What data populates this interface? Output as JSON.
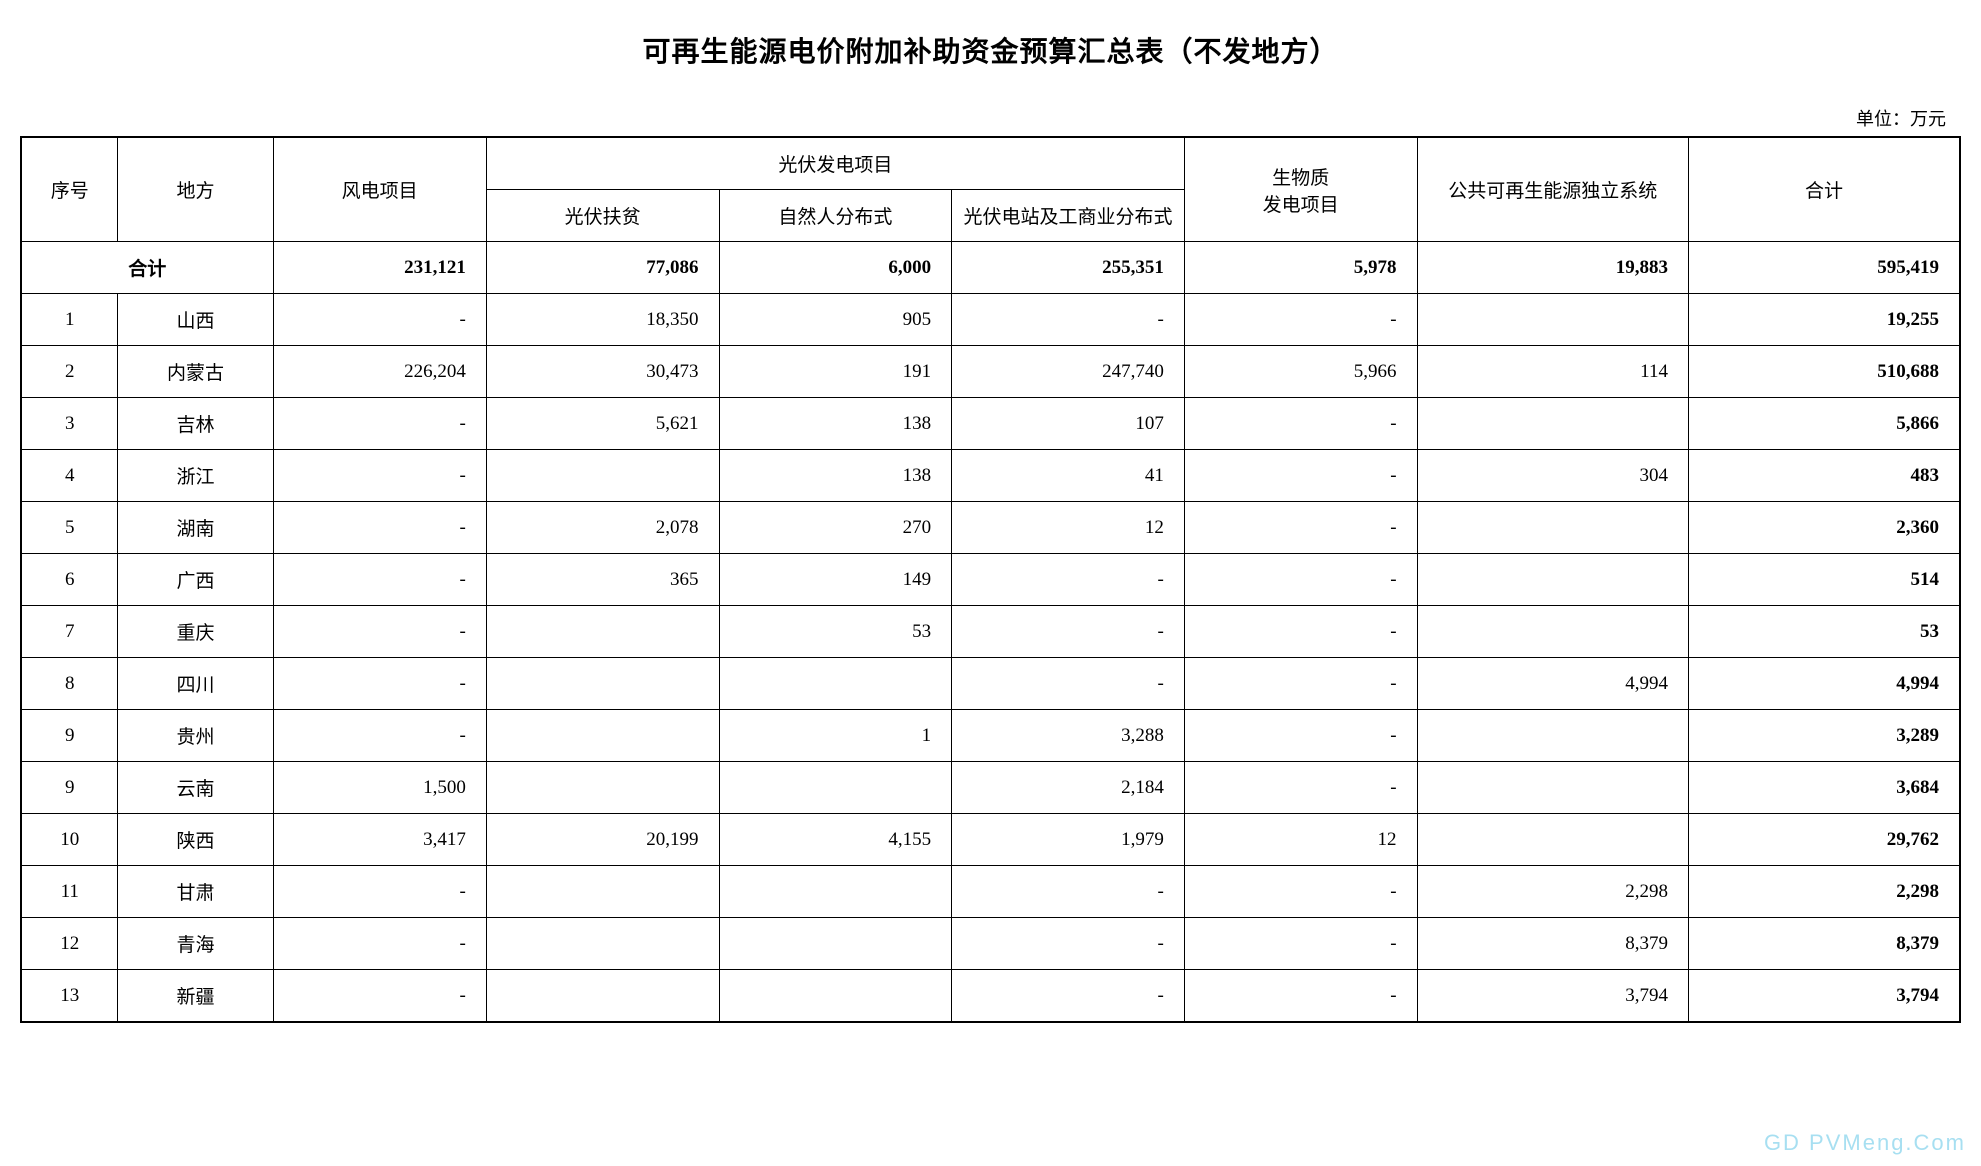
{
  "title": "可再生能源电价附加补助资金预算汇总表（不发地方）",
  "unit": "单位：万元",
  "watermark": "GD PVMeng.Com",
  "headers": {
    "seq": "序号",
    "region": "地方",
    "wind": "风电项目",
    "pv_group": "光伏发电项目",
    "pv_poverty": "光伏扶贫",
    "pv_natural": "自然人分布式",
    "pv_station": "光伏电站及工商业分布式",
    "biomass": "生物质\n发电项目",
    "public_sys": "公共可再生能源独立系统",
    "total": "合计"
  },
  "total_row": {
    "label": "合计",
    "wind": "231,121",
    "pv_poverty": "77,086",
    "pv_natural": "6,000",
    "pv_station": "255,351",
    "biomass": "5,978",
    "public_sys": "19,883",
    "total": "595,419"
  },
  "rows": [
    {
      "seq": "1",
      "region": "山西",
      "wind": "-",
      "pv_poverty": "18,350",
      "pv_natural": "905",
      "pv_station": "-",
      "biomass": "-",
      "public_sys": "",
      "total": "19,255"
    },
    {
      "seq": "2",
      "region": "内蒙古",
      "wind": "226,204",
      "pv_poverty": "30,473",
      "pv_natural": "191",
      "pv_station": "247,740",
      "biomass": "5,966",
      "public_sys": "114",
      "total": "510,688"
    },
    {
      "seq": "3",
      "region": "吉林",
      "wind": "-",
      "pv_poverty": "5,621",
      "pv_natural": "138",
      "pv_station": "107",
      "biomass": "-",
      "public_sys": "",
      "total": "5,866"
    },
    {
      "seq": "4",
      "region": "浙江",
      "wind": "-",
      "pv_poverty": "",
      "pv_natural": "138",
      "pv_station": "41",
      "biomass": "-",
      "public_sys": "304",
      "total": "483"
    },
    {
      "seq": "5",
      "region": "湖南",
      "wind": "-",
      "pv_poverty": "2,078",
      "pv_natural": "270",
      "pv_station": "12",
      "biomass": "-",
      "public_sys": "",
      "total": "2,360"
    },
    {
      "seq": "6",
      "region": "广西",
      "wind": "-",
      "pv_poverty": "365",
      "pv_natural": "149",
      "pv_station": "-",
      "biomass": "-",
      "public_sys": "",
      "total": "514"
    },
    {
      "seq": "7",
      "region": "重庆",
      "wind": "-",
      "pv_poverty": "",
      "pv_natural": "53",
      "pv_station": "-",
      "biomass": "-",
      "public_sys": "",
      "total": "53"
    },
    {
      "seq": "8",
      "region": "四川",
      "wind": "-",
      "pv_poverty": "",
      "pv_natural": "",
      "pv_station": "-",
      "biomass": "-",
      "public_sys": "4,994",
      "total": "4,994"
    },
    {
      "seq": "9",
      "region": "贵州",
      "wind": "-",
      "pv_poverty": "",
      "pv_natural": "1",
      "pv_station": "3,288",
      "biomass": "-",
      "public_sys": "",
      "total": "3,289"
    },
    {
      "seq": "9",
      "region": "云南",
      "wind": "1,500",
      "pv_poverty": "",
      "pv_natural": "",
      "pv_station": "2,184",
      "biomass": "-",
      "public_sys": "",
      "total": "3,684"
    },
    {
      "seq": "10",
      "region": "陕西",
      "wind": "3,417",
      "pv_poverty": "20,199",
      "pv_natural": "4,155",
      "pv_station": "1,979",
      "biomass": "12",
      "public_sys": "",
      "total": "29,762"
    },
    {
      "seq": "11",
      "region": "甘肃",
      "wind": "-",
      "pv_poverty": "",
      "pv_natural": "",
      "pv_station": "-",
      "biomass": "-",
      "public_sys": "2,298",
      "total": "2,298"
    },
    {
      "seq": "12",
      "region": "青海",
      "wind": "-",
      "pv_poverty": "",
      "pv_natural": "",
      "pv_station": "-",
      "biomass": "-",
      "public_sys": "8,379",
      "total": "8,379"
    },
    {
      "seq": "13",
      "region": "新疆",
      "wind": "-",
      "pv_poverty": "",
      "pv_natural": "",
      "pv_station": "-",
      "biomass": "-",
      "public_sys": "3,794",
      "total": "3,794"
    }
  ],
  "colors": {
    "text": "#000000",
    "border": "#000000",
    "background": "#ffffff",
    "watermark": "rgba(94,196,230,0.55)"
  }
}
